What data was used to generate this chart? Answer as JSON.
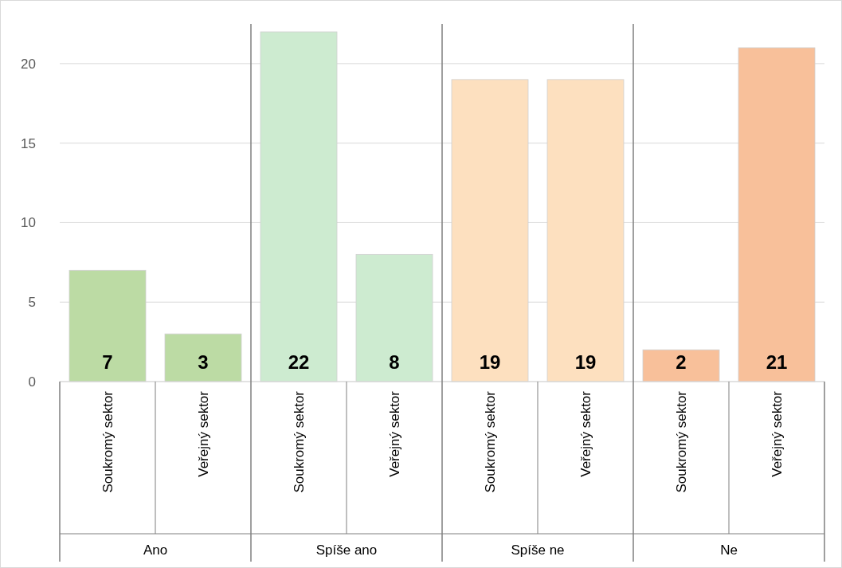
{
  "chart_data": {
    "type": "bar",
    "categories": [
      "Soukromý sektor",
      "Veřejný sektor",
      "Soukromý sektor",
      "Veřejný sektor",
      "Soukromý sektor",
      "Veřejný sektor",
      "Soukromý sektor",
      "Veřejný sektor"
    ],
    "values": [
      7,
      3,
      22,
      8,
      19,
      19,
      2,
      21
    ],
    "colors": [
      "#bcdba4",
      "#bcdba4",
      "#cdebd0",
      "#cdebd0",
      "#fde0bf",
      "#fde0bf",
      "#f8c09a",
      "#f8c09a"
    ],
    "annotations": [
      "Ano",
      "Spíše ano",
      "Spíše ne",
      "Ne"
    ],
    "ylim": [
      0,
      22.5
    ],
    "yticks": [
      0,
      5,
      10,
      15,
      20
    ],
    "grid": "y",
    "data_labels": true
  }
}
